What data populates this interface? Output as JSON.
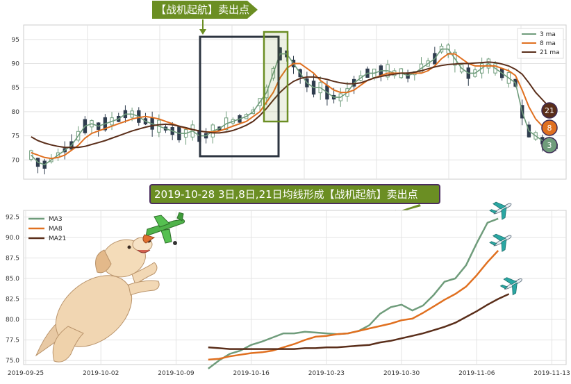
{
  "colors": {
    "ma3": "#6f9c7b",
    "ma8": "#e07020",
    "ma21": "#5a2e1a",
    "banner": "#6b8e23",
    "banner_border": "#4b2c5e",
    "candle_up": "#6f9c7b",
    "candle_down": "#2f3d4e",
    "box_dark": "#2c3440",
    "box_green": "#6b8e23"
  },
  "icons": {
    "dog": "cartoon-puppy-holding-airplane-icon",
    "planes": "airplane-icon",
    "arrows": "pointer-arrow-icon"
  },
  "top_banner": {
    "text": "【战机起航】卖出点"
  },
  "mid_banner": {
    "text": "2019-10-28 3日,8日,21日均线形成【战机起航】卖出点"
  },
  "chart_data": [
    {
      "type": "candlestick",
      "ylim": [
        66,
        98
      ],
      "yticks": [
        70,
        75,
        80,
        85,
        90,
        95
      ],
      "grid": true,
      "legend": {
        "position": "top-right",
        "entries": [
          "3 ma",
          "8 ma",
          "21 ma"
        ]
      },
      "end_markers": [
        {
          "label": "21",
          "value": 80.0
        },
        {
          "label": "8",
          "value": 76.3
        },
        {
          "label": "3",
          "value": 72.8
        }
      ],
      "series": [
        {
          "name": "3 ma",
          "values": [
            71,
            69.5,
            69,
            70,
            71,
            72,
            73,
            75,
            77,
            77.5,
            77,
            77.5,
            78,
            78.5,
            79.5,
            79.5,
            79,
            78,
            77.5,
            77,
            76.5,
            76,
            75.5,
            75.5,
            76,
            75,
            75,
            76,
            76.5,
            77.5,
            78,
            78.5,
            79,
            80,
            82,
            84,
            88,
            92,
            92,
            90,
            88,
            86,
            85,
            85,
            84,
            83,
            83,
            84,
            86,
            87,
            88,
            88,
            88.5,
            88.5,
            88,
            88,
            87.5,
            88,
            89,
            90,
            91,
            93,
            93,
            91,
            89,
            88,
            88,
            89,
            90,
            89,
            88,
            87,
            86,
            80,
            76,
            75,
            74,
            73,
            72.8
          ]
        },
        {
          "name": "8 ma",
          "values": [
            71.5,
            71,
            70.5,
            70.3,
            70.5,
            71,
            72,
            73,
            74.5,
            75.5,
            76,
            76.5,
            77,
            77.5,
            78,
            78.5,
            78.8,
            79,
            78.8,
            78.5,
            78,
            77.5,
            77,
            76.5,
            76.3,
            76,
            75.8,
            75.8,
            76,
            76.5,
            77,
            77.5,
            78,
            79,
            80,
            82,
            84,
            87,
            89,
            90,
            90,
            89,
            88,
            86.5,
            85.5,
            84.5,
            84,
            84,
            84.5,
            85.5,
            86.5,
            87,
            87.5,
            88,
            88,
            88,
            88,
            88,
            88,
            88.5,
            89.5,
            91,
            92,
            92,
            91,
            90,
            89.5,
            89.5,
            89.5,
            89.5,
            89,
            88.5,
            87.5,
            84.5,
            81,
            78.5,
            77,
            76.5,
            76.3
          ]
        },
        {
          "name": "21 ma",
          "values": [
            74.8,
            74,
            73.5,
            73.1,
            72.8,
            72.6,
            72.6,
            72.6,
            72.8,
            73.2,
            73.6,
            74,
            74.5,
            75,
            75.5,
            76,
            76.4,
            76.8,
            77.1,
            77.3,
            77.4,
            77.3,
            77,
            76.7,
            76.3,
            76,
            75.8,
            75.6,
            75.6,
            75.8,
            76.1,
            76.6,
            77.2,
            78,
            79.2,
            80.7,
            82.4,
            84,
            85.3,
            86.3,
            86.9,
            87.2,
            87.2,
            87,
            86.7,
            86.3,
            86,
            85.8,
            85.8,
            86,
            86.5,
            87,
            87.3,
            87.6,
            87.8,
            88,
            88,
            88.2,
            88.5,
            88.9,
            89.3,
            89.6,
            89.8,
            89.9,
            90,
            90,
            90.1,
            90.2,
            90.3,
            90.2,
            89.9,
            89.5,
            88.8,
            87.8,
            86,
            84,
            82.5,
            81,
            80
          ]
        }
      ]
    },
    {
      "type": "line",
      "x": [
        "2019-10-12",
        "2019-10-13",
        "2019-10-14",
        "2019-10-15",
        "2019-10-16",
        "2019-10-17",
        "2019-10-18",
        "2019-10-19",
        "2019-10-20",
        "2019-10-21",
        "2019-10-22",
        "2019-10-23",
        "2019-10-24",
        "2019-10-25",
        "2019-10-26",
        "2019-10-27",
        "2019-10-28",
        "2019-10-29",
        "2019-10-30",
        "2019-10-31",
        "2019-11-01",
        "2019-11-02",
        "2019-11-03",
        "2019-11-04",
        "2019-11-05",
        "2019-11-06",
        "2019-11-07",
        "2019-11-08",
        "2019-11-09",
        "2019-11-10",
        "2019-11-11",
        "2019-11-12",
        "2019-11-13"
      ],
      "xlim": [
        "2019-09-25",
        "2019-11-14"
      ],
      "xticks": [
        "2019-09-25",
        "2019-10-02",
        "2019-10-09",
        "2019-10-16",
        "2019-10-23",
        "2019-10-30",
        "2019-11-06",
        "2019-11-13"
      ],
      "ylim": [
        74.5,
        93.3
      ],
      "yticks": [
        75.0,
        77.5,
        80.0,
        82.5,
        85.0,
        87.5,
        90.0,
        92.5
      ],
      "grid": true,
      "legend": {
        "position": "top-left",
        "entries": [
          "MA3",
          "MA8",
          "MA21"
        ]
      },
      "series": [
        {
          "name": "MA3",
          "values": [
            74.0,
            75.0,
            75.8,
            76.2,
            76.9,
            77.3,
            77.8,
            78.3,
            78.3,
            78.5,
            78.4,
            78.3,
            78.2,
            78.3,
            78.6,
            79.3,
            80.7,
            81.5,
            81.8,
            81.1,
            81.7,
            83.0,
            84.6,
            85.0,
            86.6,
            89.3,
            91.8,
            92.3,
            null,
            null,
            null,
            null,
            null
          ]
        },
        {
          "name": "MA8",
          "values": [
            75.1,
            75.2,
            75.5,
            75.7,
            75.9,
            76.0,
            76.2,
            76.6,
            77.0,
            77.5,
            77.9,
            78.0,
            78.2,
            78.3,
            78.6,
            78.9,
            79.2,
            79.5,
            79.9,
            80.1,
            80.8,
            81.6,
            82.4,
            83.1,
            84.0,
            85.4,
            87.0,
            88.4,
            null,
            null,
            null,
            null,
            null
          ]
        },
        {
          "name": "MA21",
          "values": [
            76.6,
            76.5,
            76.4,
            76.4,
            76.4,
            76.4,
            76.4,
            76.4,
            76.4,
            76.5,
            76.5,
            76.6,
            76.6,
            76.7,
            76.8,
            76.9,
            77.2,
            77.4,
            77.7,
            78.0,
            78.3,
            78.7,
            79.1,
            79.6,
            80.3,
            81.0,
            81.8,
            82.5,
            83.1,
            null,
            null,
            null,
            null
          ]
        }
      ]
    }
  ]
}
